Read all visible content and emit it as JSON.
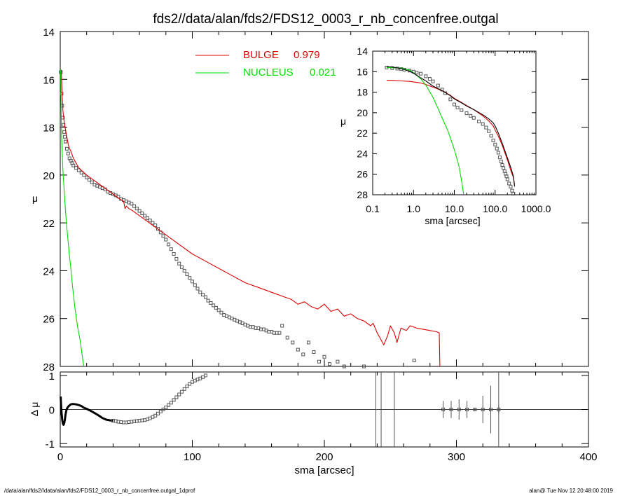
{
  "title": "fds2//data/alan/fds2/FDS12_0003_r_nb_concenfree.outgal",
  "footer": {
    "left": "/data/alan/fds2//data/alan/fds2/FDS12_0003_r_nb_concenfree.outgal_1dprof",
    "right": "alan@  Tue Nov 12 20:48:00 2019"
  },
  "colors": {
    "bulge": "#dd0000",
    "nucleus": "#00dd00",
    "data": "#555555",
    "axes": "#000000"
  },
  "chart_data": [
    {
      "id": "main",
      "type": "line",
      "xlabel": "",
      "ylabel": "μ",
      "xlim": [
        0,
        400
      ],
      "ylim": [
        28,
        14
      ],
      "yticks": [
        14,
        16,
        18,
        20,
        22,
        24,
        26,
        28
      ],
      "legend_placement": "top-center",
      "series": [
        {
          "name": "BULGE",
          "legend_value": "0.979",
          "color": "#dd0000",
          "style": "line",
          "x": [
            0.8,
            1.5,
            2,
            3,
            4,
            5,
            6,
            7,
            8,
            10,
            12,
            14,
            16,
            18,
            20,
            25,
            30,
            35,
            40,
            45,
            48,
            49,
            50,
            52,
            55,
            60,
            65,
            70,
            75,
            80,
            90,
            100,
            110,
            120,
            130,
            140,
            150,
            160,
            170,
            175,
            180,
            185,
            190,
            195,
            200,
            205,
            210,
            215,
            220,
            225,
            230,
            235,
            237,
            240,
            243,
            245,
            248,
            250,
            253,
            255,
            258,
            262,
            265,
            270,
            275,
            280,
            285,
            287,
            287.5
          ],
          "y": [
            15.6,
            16.7,
            17.3,
            17.8,
            18.1,
            18.4,
            18.7,
            18.9,
            19.0,
            19.3,
            19.5,
            19.7,
            19.8,
            19.9,
            20.0,
            20.2,
            20.4,
            20.6,
            20.8,
            21.0,
            21.1,
            21.4,
            21.3,
            21.4,
            21.5,
            21.7,
            21.9,
            22.1,
            22.3,
            22.5,
            22.9,
            23.3,
            23.6,
            23.9,
            24.2,
            24.5,
            24.7,
            24.9,
            25.1,
            25.2,
            25.4,
            25.3,
            25.5,
            25.6,
            25.4,
            25.7,
            25.6,
            25.9,
            25.8,
            26.0,
            26.1,
            26.3,
            26.2,
            26.6,
            26.9,
            27.1,
            26.7,
            26.3,
            26.6,
            27.0,
            26.4,
            26.5,
            26.3,
            26.4,
            26.45,
            26.5,
            26.55,
            26.6,
            28.0
          ]
        },
        {
          "name": "NUCLEUS",
          "legend_value": "0.021",
          "color": "#00dd00",
          "style": "line",
          "x": [
            0.3,
            0.6,
            1,
            2,
            3,
            4,
            5,
            6,
            7,
            8,
            9,
            10,
            11,
            12,
            13,
            14,
            15,
            16,
            17,
            17.8
          ],
          "y": [
            15.6,
            17.0,
            18.4,
            19.8,
            20.7,
            21.5,
            22.2,
            22.8,
            23.4,
            23.9,
            24.5,
            25.0,
            25.5,
            25.9,
            26.3,
            26.6,
            26.9,
            27.3,
            27.7,
            28.0
          ]
        },
        {
          "name": "",
          "color": "#555555",
          "style": "squares",
          "x": [
            0.5,
            1,
            1.5,
            2,
            2.5,
            3,
            3.5,
            4,
            5,
            6,
            7,
            8,
            9,
            10,
            12,
            14,
            16,
            18,
            20,
            22,
            24,
            26,
            28,
            30,
            32,
            34,
            36,
            38,
            40,
            42,
            44,
            46,
            48,
            50,
            52,
            54,
            56,
            58,
            60,
            62,
            64,
            66,
            68,
            70,
            72,
            74,
            76,
            78,
            80,
            82,
            84,
            86,
            88,
            90,
            92,
            94,
            96,
            98,
            100,
            102,
            104,
            106,
            108,
            110,
            112,
            114,
            116,
            118,
            120,
            122,
            124,
            126,
            128,
            130,
            132,
            134,
            136,
            138,
            140,
            142,
            144,
            146,
            148,
            150,
            152,
            154,
            156,
            158,
            160,
            162,
            164,
            166,
            168,
            172,
            176,
            180,
            184,
            188,
            192,
            196,
            200,
            204,
            210,
            215,
            230,
            268
          ],
          "y": [
            15.7,
            16.6,
            17.1,
            17.6,
            17.9,
            18.2,
            18.4,
            18.6,
            18.9,
            19.1,
            19.3,
            19.4,
            19.5,
            19.6,
            19.7,
            19.8,
            19.9,
            20.0,
            20.1,
            20.2,
            20.3,
            20.4,
            20.45,
            20.5,
            20.55,
            20.6,
            20.7,
            20.75,
            20.8,
            20.85,
            20.9,
            21.0,
            21.05,
            21.1,
            21.15,
            21.2,
            21.3,
            21.4,
            21.5,
            21.6,
            21.7,
            21.8,
            21.9,
            22.0,
            22.1,
            22.25,
            22.4,
            22.55,
            22.7,
            22.9,
            23.1,
            23.3,
            23.5,
            23.7,
            23.85,
            24.0,
            24.15,
            24.3,
            24.45,
            24.6,
            24.75,
            24.9,
            25.0,
            25.1,
            25.25,
            25.35,
            25.45,
            25.55,
            25.65,
            25.75,
            25.85,
            25.9,
            25.95,
            26.0,
            26.05,
            26.1,
            26.15,
            26.2,
            26.25,
            26.3,
            26.35,
            26.35,
            26.4,
            26.4,
            26.45,
            26.45,
            26.5,
            26.55,
            26.55,
            26.6,
            26.6,
            26.6,
            26.3,
            26.8,
            27.0,
            27.3,
            27.5,
            27.0,
            27.4,
            27.8,
            27.6,
            27.9,
            27.8,
            28.0,
            28.0,
            27.75
          ]
        }
      ]
    },
    {
      "id": "inset",
      "type": "line",
      "xlabel": "sma [arcsec]",
      "ylabel": "μ",
      "xscale": "log",
      "xlim": [
        0.1,
        1000
      ],
      "xticks": [
        "0.1",
        "1.0",
        "10.0",
        "100.0",
        "1000.0"
      ],
      "ylim": [
        28,
        14
      ],
      "yticks": [
        14,
        16,
        18,
        20,
        22,
        24,
        26,
        28
      ],
      "series": [
        {
          "name": "",
          "color": "#dd0000",
          "style": "line",
          "x": [
            0.22,
            0.3,
            0.5,
            0.8,
            1,
            1.5,
            2,
            3,
            5,
            8,
            10,
            15,
            20,
            30,
            50,
            70,
            90,
            100,
            120,
            150,
            200,
            250,
            280,
            300
          ],
          "y": [
            16.85,
            16.85,
            16.9,
            16.95,
            17.0,
            17.1,
            17.25,
            17.5,
            17.85,
            18.3,
            18.6,
            19.0,
            19.3,
            19.7,
            20.3,
            20.8,
            21.3,
            21.7,
            22.3,
            23.2,
            24.6,
            25.8,
            26.3,
            27.0
          ]
        },
        {
          "name": "",
          "color": "#00dd00",
          "style": "line",
          "x": [
            0.22,
            0.5,
            0.8,
            1,
            1.5,
            2,
            3,
            4,
            5,
            7,
            10,
            13,
            15,
            17
          ],
          "y": [
            15.6,
            15.65,
            15.85,
            16.1,
            16.7,
            17.3,
            18.5,
            19.6,
            20.5,
            21.8,
            23.6,
            25.2,
            26.6,
            28.0
          ]
        },
        {
          "name": "",
          "color": "#555555",
          "style": "squares",
          "x": [
            0.22,
            0.3,
            0.4,
            0.5,
            0.6,
            0.8,
            1,
            1.2,
            1.5,
            2,
            2.5,
            3,
            4,
            5,
            6,
            8,
            10,
            12,
            15,
            20,
            25,
            30,
            40,
            50,
            60,
            70,
            80,
            90,
            100,
            110,
            120,
            130,
            140,
            150,
            160,
            170,
            180,
            190,
            200,
            220,
            240,
            260,
            280
          ],
          "y": [
            15.6,
            15.65,
            15.7,
            15.75,
            15.8,
            15.9,
            16.0,
            16.1,
            16.2,
            16.45,
            16.7,
            16.95,
            17.35,
            17.75,
            18.1,
            18.7,
            19.2,
            19.5,
            19.75,
            20.05,
            20.3,
            20.5,
            20.85,
            21.1,
            21.45,
            21.8,
            22.25,
            22.7,
            23.1,
            23.5,
            23.9,
            24.35,
            24.75,
            25.1,
            25.4,
            25.7,
            25.95,
            26.2,
            26.5,
            26.9,
            27.2,
            27.6,
            27.9
          ]
        },
        {
          "name": "",
          "color": "#000000",
          "style": "line",
          "x": [
            0.22,
            0.3,
            0.5,
            0.8,
            1,
            1.5,
            2,
            3,
            5,
            8,
            10,
            15,
            20,
            30,
            50,
            70,
            90,
            100,
            120,
            150,
            200,
            250,
            280,
            300
          ],
          "y": [
            15.5,
            15.55,
            15.7,
            15.95,
            16.15,
            16.6,
            16.9,
            17.4,
            17.85,
            18.35,
            18.65,
            19.05,
            19.35,
            19.7,
            20.2,
            20.6,
            21.0,
            21.3,
            22.0,
            23.0,
            24.4,
            25.5,
            26.2,
            27.2
          ]
        }
      ]
    },
    {
      "id": "residual",
      "type": "scatter",
      "xlabel": "sma [arcsec]",
      "ylabel": "Δ μ",
      "xlim": [
        0,
        400
      ],
      "xticks": [
        0,
        100,
        200,
        300,
        400
      ],
      "ylim": [
        -1.1,
        1.1
      ],
      "yticks": [
        1,
        0,
        -1
      ],
      "reference_line": 0,
      "series": [
        {
          "name": "",
          "color": "#000000",
          "style": "thick-line",
          "x": [
            0.3,
            0.6,
            1,
            1.5,
            2,
            2.5,
            3,
            3.5,
            4,
            4.5,
            5,
            6,
            7,
            8,
            9,
            10,
            12,
            14,
            16,
            18,
            20,
            22,
            25,
            28,
            30,
            32,
            35,
            38,
            40
          ],
          "y": [
            0.38,
            0.15,
            -0.1,
            -0.3,
            -0.42,
            -0.45,
            -0.4,
            -0.3,
            -0.15,
            -0.05,
            0.02,
            0.08,
            0.12,
            0.15,
            0.16,
            0.16,
            0.15,
            0.13,
            0.1,
            0.05,
            0.02,
            -0.02,
            -0.08,
            -0.15,
            -0.2,
            -0.25,
            -0.3,
            -0.32,
            -0.33
          ]
        },
        {
          "name": "",
          "color": "#555555",
          "style": "squares",
          "x": [
            40,
            42,
            44,
            46,
            48,
            50,
            52,
            54,
            56,
            58,
            60,
            62,
            64,
            66,
            68,
            70,
            72,
            74,
            76,
            78,
            80,
            82,
            84,
            86,
            88,
            90,
            92,
            94,
            96,
            98,
            100,
            102,
            104,
            106,
            108,
            110
          ],
          "y": [
            -0.33,
            -0.34,
            -0.36,
            -0.37,
            -0.38,
            -0.38,
            -0.37,
            -0.36,
            -0.35,
            -0.34,
            -0.33,
            -0.32,
            -0.31,
            -0.29,
            -0.26,
            -0.22,
            -0.18,
            -0.12,
            -0.06,
            0.0,
            0.06,
            0.13,
            0.2,
            0.28,
            0.36,
            0.44,
            0.52,
            0.6,
            0.68,
            0.75,
            0.81,
            0.85,
            0.88,
            0.91,
            0.95,
            1.0
          ]
        },
        {
          "name": "",
          "color": "#555555",
          "style": "errorbars",
          "x": [
            290,
            296,
            302,
            308,
            314,
            320,
            326,
            332
          ],
          "y": [
            0,
            0,
            0,
            0,
            0,
            0,
            0,
            0
          ],
          "err": [
            0.25,
            0.25,
            0.3,
            0.25,
            0.05,
            0.4,
            0.7,
            0.12
          ]
        },
        {
          "name": "",
          "color": "#555555",
          "style": "vlines",
          "x": [
            239,
            243,
            253,
            332
          ]
        }
      ]
    }
  ]
}
